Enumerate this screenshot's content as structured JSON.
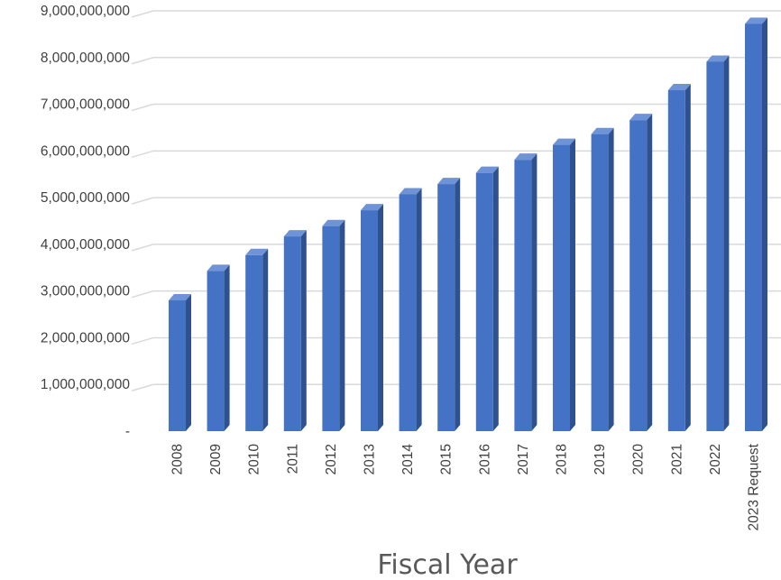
{
  "chart_data": {
    "type": "bar",
    "title": "",
    "xlabel": "Fiscal Year",
    "ylabel": "",
    "categories": [
      "2008",
      "2009",
      "2010",
      "2011",
      "2012",
      "2013",
      "2014",
      "2015",
      "2016",
      "2017",
      "2018",
      "2019",
      "2020",
      "2021",
      "2022",
      "2023 Request"
    ],
    "values": [
      2800000000,
      3430000000,
      3770000000,
      4170000000,
      4390000000,
      4730000000,
      5070000000,
      5290000000,
      5530000000,
      5810000000,
      6130000000,
      6360000000,
      6660000000,
      7300000000,
      7910000000,
      8720000000
    ],
    "ylim": [
      0,
      9000000000
    ],
    "yticks": [
      0,
      1000000000,
      2000000000,
      3000000000,
      4000000000,
      5000000000,
      6000000000,
      7000000000,
      8000000000,
      9000000000
    ],
    "ytick_labels": [
      "-",
      "1,000,000,000",
      "2,000,000,000",
      "3,000,000,000",
      "4,000,000,000",
      "5,000,000,000",
      "6,000,000,000",
      "7,000,000,000",
      "8,000,000,000",
      "9,000,000,000"
    ],
    "grid": true,
    "style": "3d-column",
    "colors": {
      "bar_front": "#4472C4",
      "bar_side": "#2F528F",
      "bar_top": "#6E93D6",
      "grid": "#D9D9D9"
    }
  }
}
